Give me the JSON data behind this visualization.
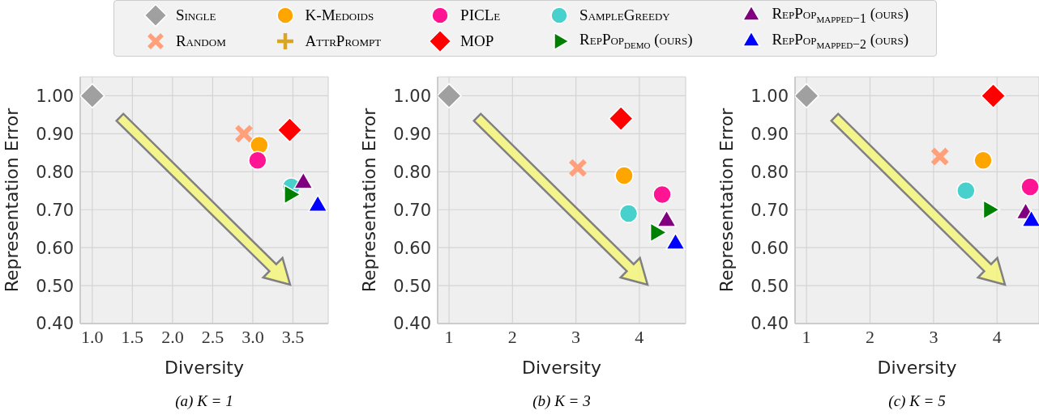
{
  "chart_data": [
    {
      "type": "scatter",
      "title": "(a) K = 1",
      "xlabel": "Diversity",
      "ylabel": "Representation Error",
      "xlim": [
        0.85,
        3.94
      ],
      "ylim": [
        0.4,
        1.05
      ],
      "xticks": [
        {
          "value": 1,
          "label": "1.0"
        },
        {
          "value": 1.5,
          "label": "1.5"
        },
        {
          "value": 2,
          "label": "2.0"
        },
        {
          "value": 2.5,
          "label": "2.5"
        },
        {
          "value": 3,
          "label": "3.0"
        },
        {
          "value": 3.5,
          "label": "3.5"
        }
      ],
      "yticks": [
        {
          "value": 0.4,
          "label": "0.40"
        },
        {
          "value": 0.5,
          "label": "0.50"
        },
        {
          "value": 0.6,
          "label": "0.60"
        },
        {
          "value": 0.7,
          "label": "0.70"
        },
        {
          "value": 0.8,
          "label": "0.80"
        },
        {
          "value": 0.9,
          "label": "0.90"
        },
        {
          "value": 1,
          "label": "1.00"
        }
      ],
      "grid": true,
      "legend": "top",
      "series": [
        {
          "name": "Single",
          "color": "#a0a0a0",
          "marker": "diamond",
          "x": [
            1.0
          ],
          "values": [
            1.0
          ]
        },
        {
          "name": "Random",
          "color": "#ffa07a",
          "marker": "x",
          "x": [
            2.89
          ],
          "values": [
            0.9
          ]
        },
        {
          "name": "K-Medoids",
          "color": "#ffa500",
          "x": [
            3.08
          ],
          "values": [
            0.87
          ]
        },
        {
          "name": "AttrPrompt",
          "color": "#daa520",
          "marker": "plus",
          "x": [
            null
          ],
          "values": [
            null
          ]
        },
        {
          "name": "PICLe",
          "color": "#ff1493",
          "marker": "circle",
          "x": [
            3.06
          ],
          "values": [
            0.83
          ]
        },
        {
          "name": "MOP",
          "color": "#ff0000",
          "marker": "diamond",
          "x": [
            3.46
          ],
          "values": [
            0.91
          ]
        },
        {
          "name": "SampleGreedy",
          "color": "#48d1cc",
          "x": [
            3.48
          ],
          "values": [
            0.76
          ]
        },
        {
          "name": "RepPop$_{demo}$ (ours)",
          "color": "#008000",
          "marker": "triangle-right",
          "x": [
            3.46
          ],
          "values": [
            0.74
          ]
        },
        {
          "name": "RepPop$_{mapped−1}$ (ours)",
          "color": "#800080",
          "marker": "triangle",
          "x": [
            3.63
          ],
          "values": [
            0.77
          ]
        },
        {
          "name": "RepPop$_{mapped−2}$ (ours)",
          "color": "#0000ff",
          "marker": "triangle",
          "x": [
            3.81
          ],
          "values": [
            0.71
          ]
        }
      ]
    },
    {
      "type": "scatter",
      "title": "(b) K = 3",
      "xlabel": "Diversity",
      "ylabel": "Representation Error",
      "xlim": [
        0.82,
        4.73
      ],
      "ylim": [
        0.4,
        1.05
      ],
      "xticks": [
        1,
        2,
        3,
        4
      ],
      "yticks": [
        {
          "value": 0.4,
          "label": "0.40"
        },
        {
          "value": 0.5,
          "label": "0.50"
        },
        {
          "value": 0.6,
          "label": "0.60"
        },
        {
          "value": 0.7,
          "label": "0.70"
        },
        {
          "value": 0.8,
          "label": "0.80"
        },
        {
          "value": 0.9,
          "label": "0.90"
        },
        {
          "value": 1,
          "label": "1.00"
        }
      ],
      "grid": true,
      "series": [
        {
          "color": "#a0a0a0",
          "marker": "diamond",
          "x": [
            1.0
          ],
          "values": [
            1.0
          ]
        },
        {
          "color": "#ffa07a",
          "marker": "x",
          "x": [
            3.03
          ],
          "values": [
            0.81
          ]
        },
        {
          "color": "#ffa500",
          "x": [
            3.76
          ],
          "values": [
            0.79
          ]
        },
        {
          "color": "#ff1493",
          "marker": "circle",
          "x": [
            4.36
          ],
          "values": [
            0.74
          ]
        },
        {
          "color": "#ff0000",
          "marker": "diamond",
          "x": [
            3.71
          ],
          "values": [
            0.94
          ]
        },
        {
          "color": "#48d1cc",
          "x": [
            3.83
          ],
          "values": [
            0.69
          ]
        },
        {
          "color": "#008000",
          "marker": "triangle-right",
          "x": [
            4.26
          ],
          "values": [
            0.64
          ]
        },
        {
          "color": "#800080",
          "marker": "triangle",
          "x": [
            4.43
          ],
          "values": [
            0.67
          ]
        },
        {
          "color": "#0000ff",
          "marker": "triangle",
          "x": [
            4.57
          ],
          "values": [
            0.61
          ]
        }
      ]
    },
    {
      "type": "scatter",
      "title": "(c) K = 5",
      "xlabel": "Diversity",
      "ylabel": "Representation Error",
      "xlim": [
        0.82,
        4.66
      ],
      "ylim": [
        0.4,
        1.05
      ],
      "xticks": [
        1,
        2,
        3,
        4
      ],
      "yticks": [
        {
          "value": 0.4,
          "label": "0.40"
        },
        {
          "value": 0.5,
          "label": "0.50"
        },
        {
          "value": 0.6,
          "label": "0.60"
        },
        {
          "value": 0.7,
          "label": "0.70"
        },
        {
          "value": 0.8,
          "label": "0.80"
        },
        {
          "value": 0.9,
          "label": "0.90"
        },
        {
          "value": 1,
          "label": "1.00"
        }
      ],
      "grid": true,
      "series": [
        {
          "color": "#a0a0a0",
          "marker": "diamond",
          "x": [
            1.0
          ],
          "values": [
            1.0
          ]
        },
        {
          "color": "#ffa07a",
          "marker": "x",
          "x": [
            3.1
          ],
          "values": [
            0.84
          ]
        },
        {
          "color": "#ffa500",
          "x": [
            3.78
          ],
          "values": [
            0.83
          ]
        },
        {
          "color": "#ff1493",
          "marker": "circle",
          "x": [
            4.52
          ],
          "values": [
            0.76
          ]
        },
        {
          "color": "#ff0000",
          "marker": "diamond",
          "x": [
            3.94
          ],
          "values": [
            1.0
          ]
        },
        {
          "color": "#48d1cc",
          "x": [
            3.51
          ],
          "values": [
            0.75
          ]
        },
        {
          "color": "#008000",
          "marker": "triangle-right",
          "x": [
            3.87
          ],
          "values": [
            0.7
          ]
        },
        {
          "color": "#800080",
          "marker": "triangle",
          "x": [
            4.45
          ],
          "values": [
            0.69
          ]
        },
        {
          "color": "#0000ff",
          "marker": "triangle",
          "x": [
            4.54
          ],
          "values": [
            0.67
          ]
        }
      ]
    }
  ]
}
